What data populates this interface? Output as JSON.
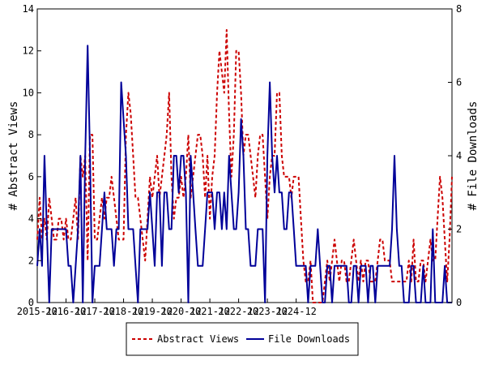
{
  "chart_data": {
    "type": "line",
    "title": "",
    "xlabel": "",
    "ylabel_left": "# Abstract Views",
    "ylabel_right": "# File Downloads",
    "x_tick_labels": [
      "2015-12",
      "2016-12",
      "2017-12",
      "2018-12",
      "2019-12",
      "2020-12",
      "2021-12",
      "2022-12",
      "2023-12",
      "2024-12"
    ],
    "ylim_left": [
      0,
      14
    ],
    "yticks_left": [
      0,
      2,
      4,
      6,
      8,
      10,
      12,
      14
    ],
    "ylim_right": [
      0,
      8
    ],
    "yticks_right": [
      0,
      2,
      4,
      6,
      8
    ],
    "grid": false,
    "legend_position": "bottom",
    "series": [
      {
        "name": "Abstract Views",
        "axis": "left",
        "color": "#cc0000",
        "style": "dashed",
        "values": [
          3,
          5,
          3,
          4,
          3,
          5,
          4,
          3,
          3,
          4,
          4,
          3,
          4,
          3,
          3,
          4,
          5,
          3,
          7,
          6,
          7,
          2,
          8,
          8,
          3,
          3,
          4,
          5,
          4,
          5,
          5,
          6,
          5,
          4,
          3,
          3,
          3,
          8,
          10,
          9,
          7,
          5,
          5,
          4,
          3,
          2,
          4,
          6,
          5,
          6,
          7,
          5,
          6,
          7,
          8,
          10,
          6,
          4,
          5,
          5,
          6,
          5,
          6,
          8,
          5,
          6,
          7,
          8,
          8,
          7,
          5,
          7,
          4,
          6,
          7,
          10,
          12,
          11,
          10,
          13,
          9,
          6,
          8,
          12,
          12,
          10,
          7,
          8,
          8,
          7,
          6,
          5,
          7,
          8,
          8,
          6,
          4,
          6,
          7,
          7,
          10,
          10,
          7,
          6,
          6,
          6,
          5,
          6,
          6,
          6,
          4,
          2,
          1,
          1,
          2,
          0,
          0,
          0,
          0,
          0,
          1,
          2,
          1,
          2,
          3,
          2,
          1,
          2,
          2,
          1,
          1,
          2,
          3,
          2,
          1,
          2,
          1,
          2,
          2,
          1,
          1,
          1,
          2,
          3,
          3,
          2,
          2,
          2,
          1,
          1,
          1,
          1,
          1,
          1,
          1,
          2,
          1,
          3,
          1,
          1,
          2,
          2,
          1,
          2,
          3,
          2,
          2,
          4,
          6,
          5,
          3,
          1,
          3,
          6
        ]
      },
      {
        "name": "File Downloads",
        "axis": "right",
        "color": "#000099",
        "style": "solid",
        "values": [
          1,
          2,
          1,
          4,
          2,
          0,
          2,
          2,
          2,
          2,
          2,
          2,
          2,
          1,
          1,
          0,
          1,
          2,
          4,
          0,
          4,
          7,
          4,
          0,
          1,
          1,
          1,
          2,
          3,
          2,
          2,
          2,
          1,
          2,
          2,
          6,
          5,
          4,
          2,
          2,
          2,
          1,
          0,
          2,
          2,
          2,
          2,
          3,
          2,
          1,
          3,
          3,
          1,
          3,
          3,
          2,
          2,
          4,
          4,
          3,
          4,
          4,
          3,
          0,
          4,
          3,
          2,
          1,
          1,
          1,
          2,
          3,
          3,
          3,
          2,
          3,
          3,
          2,
          3,
          2,
          4,
          3,
          2,
          2,
          3,
          5,
          4,
          2,
          2,
          1,
          1,
          1,
          2,
          2,
          2,
          0,
          4,
          6,
          4,
          3,
          4,
          3,
          3,
          2,
          2,
          3,
          3,
          2,
          1,
          1,
          1,
          1,
          1,
          0,
          1,
          1,
          1,
          2,
          1,
          0,
          0,
          1,
          1,
          0,
          1,
          1,
          1,
          1,
          1,
          1,
          0,
          0,
          1,
          1,
          0,
          1,
          1,
          1,
          0,
          1,
          1,
          0,
          1,
          1,
          1,
          1,
          1,
          1,
          2,
          4,
          2,
          1,
          1,
          0,
          0,
          0,
          1,
          1,
          0,
          0,
          0,
          1,
          0,
          0,
          0,
          2,
          0,
          0,
          0,
          0,
          1,
          0,
          0,
          0
        ]
      }
    ]
  }
}
